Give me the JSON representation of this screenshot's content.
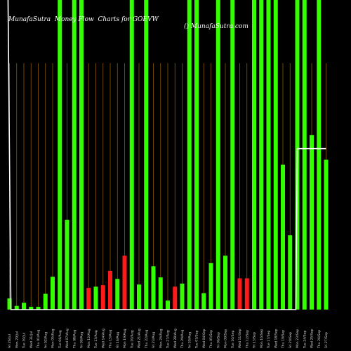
{
  "header": {
    "title_left": "MunafaSutra  Money Flow  Charts for GOEVW",
    "title_right": "() MunafaSutra.com"
  },
  "colors": {
    "background": "#000000",
    "inflow": "#33ff00",
    "outflow": "#ff1a1a",
    "grid": "#8a5a00",
    "price_line": "#ffffff"
  },
  "chart_data": {
    "type": "bar",
    "title": "MunafaSutra  Money Flow  Charts for GOEVW",
    "xlabel": "",
    "ylabel": "",
    "ylim": [
      0,
      100
    ],
    "grid": true,
    "categories": [
      "Fri 26 Jul 2024",
      "Mon 29 Jul 2024",
      "Tue 30 Jul 2024",
      "Wed 31 Jul 2024",
      "Thu 01 Aug 2024",
      "Fri 02 Aug 2024",
      "Mon 05 Aug 2024",
      "Tue 06 Aug 2024",
      "Wed 07 Aug 2024",
      "Thu 08 Aug 2024",
      "Fri 09 Aug 2024",
      "Mon 12 Aug 2024",
      "Tue 13 Aug 2024",
      "Wed 14 Aug 2024",
      "Thu 15 Aug 2024",
      "Fri 16 Aug 2024",
      "Mon 19 Aug 2024",
      "Tue 20 Aug 2024",
      "Wed 21 Aug 2024",
      "Thu 22 Aug 2024",
      "Fri 23 Aug 2024",
      "Mon 26 Aug 2024",
      "Tue 27 Aug 2024",
      "Wed 28 Aug 2024",
      "Thu 29 Aug 2024",
      "Fri 30 Aug 2024",
      "Tue 03 Sep 2024",
      "Wed 04 Sep 2024",
      "Thu 05 Sep 2024",
      "Fri 06 Sep 2024",
      "Mon 09 Sep 2024",
      "Tue 10 Sep 2024",
      "Wed 11 Sep 2024",
      "Thu 12 Sep 2024",
      "Fri 13 Sep 2024",
      "Mon 16 Sep 2024",
      "Tue 17 Sep 2024",
      "Wed 18 Sep 2024",
      "Thu 19 Sep 2024",
      "Fri 20 Sep 2024",
      "Mon 23 Sep 2024",
      "Tue 24 Sep 2024",
      "Wed 25 Sep 2024",
      "Thu 26 Sep 2024",
      "Fri 27 Sep 2024"
    ],
    "x_tick_labels": [
      "Fri 26/Jul",
      "Mon 29/Jul",
      "Tue 30/Jul",
      "Wed 31/Jul",
      "Thu 01/Aug",
      "Fri 02/Aug",
      "Mon 05/Aug",
      "Tue 06/Aug",
      "Wed 07/Aug",
      "Thu 08/Aug",
      "Fri 09/Aug",
      "Mon 12/Aug",
      "Tue 13/Aug",
      "Wed 14/Aug",
      "Thu 15/Aug",
      "Fri 16/Aug",
      "Mon 19/Aug",
      "Tue 20/Aug",
      "Wed 21/Aug",
      "Thu 22/Aug",
      "Fri 23/Aug",
      "Mon 26/Aug",
      "Tue 27/Aug",
      "Wed 28/Aug",
      "Thu 29/Aug",
      "Fri 30/Aug",
      "Tue 03/Sep",
      "Wed 04/Sep",
      "Thu 05/Sep",
      "Fri 06/Sep",
      "Mon 09/Sep",
      "Tue 10/Sep",
      "Wed 11/Sep",
      "Thu 12/Sep",
      "Fri 13/Sep",
      "Mon 16/Sep",
      "Tue 17/Sep",
      "Wed 18/Sep",
      "Thu 19/Sep",
      "Fri 20/Sep",
      "Mon 23/Sep",
      "Tue 24/Sep",
      "Wed 25/Sep",
      "Thu 26/Sep",
      "Fri 27/Sep"
    ],
    "series": [
      {
        "values": [
          3.6,
          1.2,
          2.2,
          0.9,
          0.9,
          5.1,
          10.6,
          100,
          29.0,
          100,
          100,
          7.0,
          7.4,
          7.9,
          12.5,
          9.9,
          17.4,
          100,
          8.1,
          100,
          14.0,
          10.4,
          2.9,
          7.4,
          8.4,
          100,
          100,
          5.3,
          15.0,
          100,
          17.4,
          100,
          10.1,
          10.1,
          100,
          100,
          100,
          100,
          46.8,
          24.0,
          100,
          100,
          56.4,
          100,
          48.4
        ],
        "flow": [
          "in",
          "in",
          "in",
          "in",
          "in",
          "in",
          "in",
          "in",
          "in",
          "in",
          "in",
          "out",
          "in",
          "out",
          "out",
          "in",
          "out",
          "in",
          "in",
          "in",
          "in",
          "in",
          "in",
          "out",
          "in",
          "in",
          "in",
          "in",
          "in",
          "in",
          "in",
          "in",
          "out",
          "out",
          "in",
          "in",
          "in",
          "in",
          "in",
          "in",
          "in",
          "in",
          "in",
          "in",
          "in"
        ]
      }
    ],
    "price_line": {
      "x_index": [
        -0.2,
        0.2,
        39.8,
        40.0,
        44.0
      ],
      "values": [
        100,
        0,
        0,
        52,
        52
      ]
    }
  }
}
